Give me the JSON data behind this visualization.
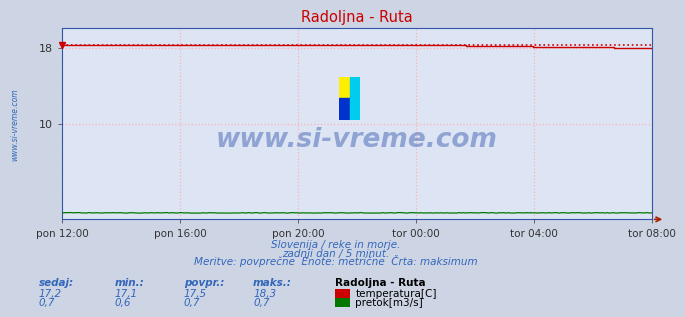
{
  "title": "Radoljna - Ruta",
  "bg_color": "#cdd5e4",
  "plot_bg_color": "#dde5f5",
  "grid_color": "#ffb0b0",
  "grid_style": ":",
  "x_labels": [
    "pon 12:00",
    "pon 16:00",
    "pon 20:00",
    "tor 00:00",
    "tor 04:00",
    "tor 08:00"
  ],
  "ylim": [
    0,
    20
  ],
  "ytick_labels": [
    "10",
    "18"
  ],
  "ytick_vals": [
    10,
    18
  ],
  "temp_max_val": 18.3,
  "temp_color": "#cc0000",
  "flow_color": "#007700",
  "watermark_text": "www.si-vreme.com",
  "watermark_color": "#3355aa",
  "subtitle1": "Slovenija / reke in morje.",
  "subtitle2": "zadnji dan / 5 minut.",
  "subtitle3": "Meritve: povprečne  Enote: metrične  Črta: maksimum",
  "subtitle_color": "#3366bb",
  "left_label": "www.si-vreme.com",
  "left_label_color": "#3366bb",
  "legend_title": "Radoljna - Ruta",
  "legend_items": [
    "temperatura[C]",
    "pretok[m3/s]"
  ],
  "legend_colors": [
    "#cc0000",
    "#007700"
  ],
  "stats_labels": [
    "sedaj:",
    "min.:",
    "povpr.:",
    "maks.:"
  ],
  "stats_temp": [
    "17,2",
    "17,1",
    "17,5",
    "18,3"
  ],
  "stats_flow": [
    "0,7",
    "0,6",
    "0,7",
    "0,7"
  ],
  "stats_color": "#3366bb",
  "arrow_color": "#aa2200",
  "logo_colors": [
    "#ffee00",
    "#00ccee",
    "#0033cc",
    "#00ccee"
  ],
  "spine_color": "#3355aa",
  "tick_color": "#333333"
}
